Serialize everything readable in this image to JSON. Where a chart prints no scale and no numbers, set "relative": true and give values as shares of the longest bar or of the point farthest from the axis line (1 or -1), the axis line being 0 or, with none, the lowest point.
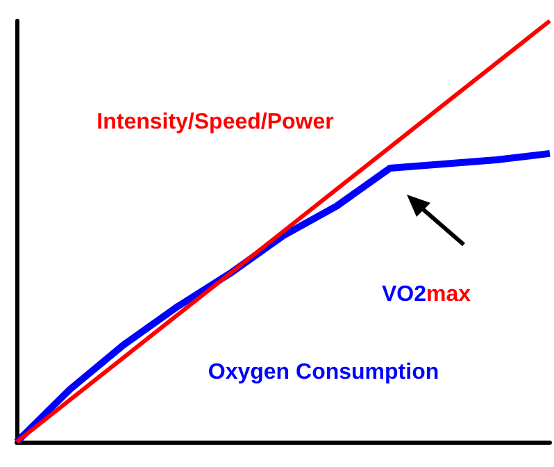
{
  "chart_data": {
    "type": "line",
    "relative": true,
    "categories": [
      null,
      null,
      null,
      null,
      null,
      null,
      null,
      null,
      null,
      null,
      null
    ],
    "series": [
      {
        "name": "Intensity/Speed/Power",
        "color": "#ff0000",
        "values": [
          0,
          0.1,
          0.2,
          0.3,
          0.4,
          0.5,
          0.6,
          0.7,
          0.8,
          0.9,
          1
        ]
      },
      {
        "name": "Oxygen Consumption",
        "color": "#0000ff",
        "values": [
          0,
          0.125,
          0.23,
          0.32,
          0.4,
          0.49,
          0.56,
          0.65,
          0.66,
          0.67,
          0.685
        ]
      }
    ],
    "annotations": [
      "VO2",
      "max"
    ],
    "legend": false,
    "grid": false,
    "marker": "none",
    "line_style": "solid"
  }
}
